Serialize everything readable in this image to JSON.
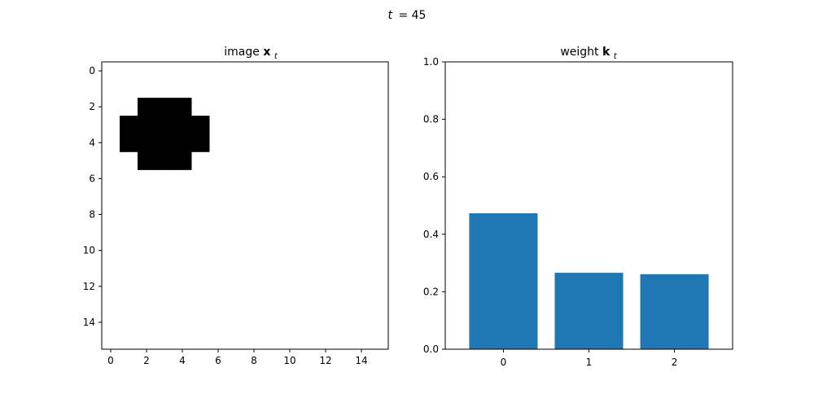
{
  "figure": {
    "suptitle_var": "t",
    "suptitle_eq": "= 45"
  },
  "chart_data": [
    {
      "type": "heatmap",
      "title_text": "image ",
      "title_bold": "x",
      "title_sub": "t",
      "rows": 16,
      "cols": 16,
      "cmap": "gray_r",
      "xticks": [
        0,
        2,
        4,
        6,
        8,
        10,
        12,
        14
      ],
      "yticks": [
        0,
        2,
        4,
        6,
        8,
        10,
        12,
        14
      ],
      "filled_pixels": [
        [
          2,
          2
        ],
        [
          2,
          3
        ],
        [
          2,
          4
        ],
        [
          3,
          1
        ],
        [
          3,
          2
        ],
        [
          3,
          3
        ],
        [
          3,
          4
        ],
        [
          3,
          5
        ],
        [
          4,
          1
        ],
        [
          4,
          2
        ],
        [
          4,
          3
        ],
        [
          4,
          4
        ],
        [
          4,
          5
        ],
        [
          5,
          2
        ],
        [
          5,
          3
        ],
        [
          5,
          4
        ]
      ],
      "filled_color": "#000000",
      "empty_color": "#ffffff"
    },
    {
      "type": "bar",
      "title_text": "weight ",
      "title_bold": "k",
      "title_sub": "t",
      "categories": [
        "0",
        "1",
        "2"
      ],
      "values": [
        0.473,
        0.266,
        0.261
      ],
      "ylim": [
        0,
        1.0
      ],
      "yticks": [
        "0.0",
        "0.2",
        "0.4",
        "0.6",
        "0.8",
        "1.0"
      ],
      "bar_color": "#1f77b4"
    }
  ]
}
